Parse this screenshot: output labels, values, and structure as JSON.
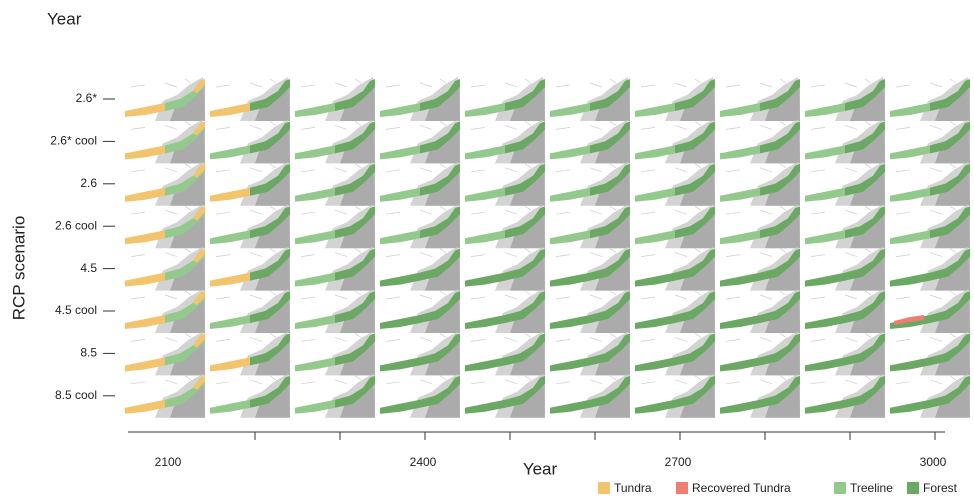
{
  "chart_data": {
    "type": "map-grid",
    "title": "Year",
    "x_label": "Year",
    "y_label": "RCP scenario",
    "categories": [
      "2.6*",
      "2.6* cool",
      "2.6",
      "2.6 cool",
      "4.5",
      "4.5 cool",
      "8.5",
      "8.5 cool"
    ],
    "x": [
      "2100",
      null,
      null,
      "2400",
      null,
      null,
      "2700",
      null,
      null,
      "3000"
    ],
    "series": [
      {
        "name": "Tundra",
        "color": "#f2c46d"
      },
      {
        "name": "Recovered Tundra",
        "color": "#ee7d72"
      },
      {
        "name": "Treeline",
        "color": "#94c98d"
      },
      {
        "name": "Forest",
        "color": "#6aa863"
      }
    ]
  }
}
